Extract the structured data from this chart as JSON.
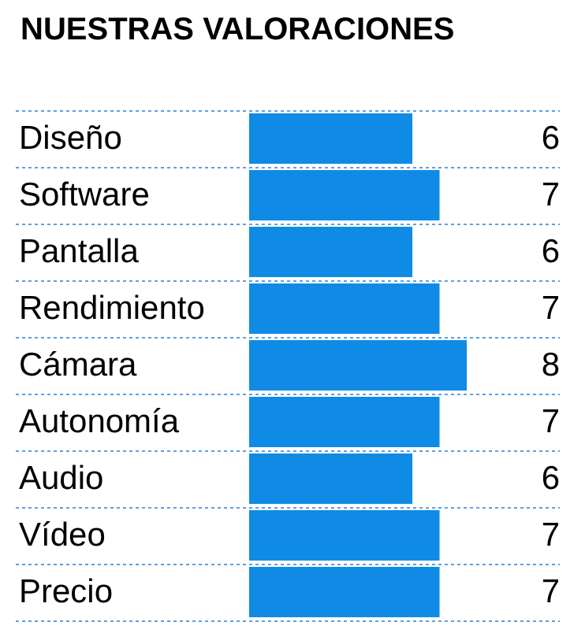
{
  "chart_data": {
    "type": "bar",
    "orientation": "horizontal",
    "title": "NUESTRAS VALORACIONES",
    "categories": [
      "Diseño",
      "Software",
      "Pantalla",
      "Rendimiento",
      "Cámara",
      "Autonomía",
      "Audio",
      "Vídeo",
      "Precio"
    ],
    "values": [
      6,
      7,
      6,
      7,
      8,
      7,
      6,
      7,
      7
    ],
    "color": "#0f8be6",
    "data_labels": true,
    "grid": "y"
  }
}
